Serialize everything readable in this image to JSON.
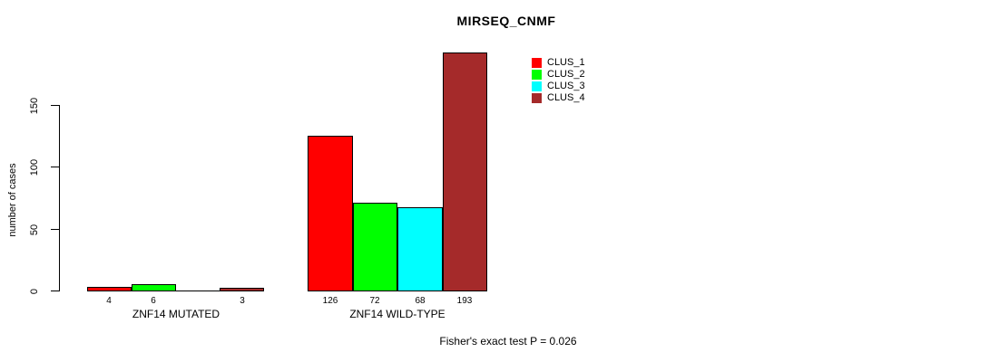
{
  "title": "MIRSEQ_CNMF",
  "chart_data": {
    "type": "bar",
    "title": "MIRSEQ_CNMF",
    "xlabel": "",
    "ylabel": "number of cases",
    "ylim": [
      0,
      200
    ],
    "yticks": [
      0,
      50,
      100,
      150
    ],
    "grid": false,
    "legend_position": "top-right",
    "categories": [
      "ZNF14 MUTATED",
      "ZNF14 WILD-TYPE"
    ],
    "series": [
      {
        "name": "CLUS_1",
        "color": "#ff0000",
        "values": [
          4,
          126
        ]
      },
      {
        "name": "CLUS_2",
        "color": "#00ff00",
        "values": [
          6,
          72
        ]
      },
      {
        "name": "CLUS_3",
        "color": "#00ffff",
        "values": [
          0,
          68
        ]
      },
      {
        "name": "CLUS_4",
        "color": "#a52a2a",
        "values": [
          3,
          193
        ]
      }
    ],
    "bar_labels": [
      [
        "4",
        "6",
        "",
        "3"
      ],
      [
        "126",
        "72",
        "68",
        "193"
      ]
    ],
    "annotation": "Fisher's exact test P = 0.026"
  },
  "colors": {
    "axis": "#000000",
    "text": "#000000",
    "background": "#ffffff"
  }
}
